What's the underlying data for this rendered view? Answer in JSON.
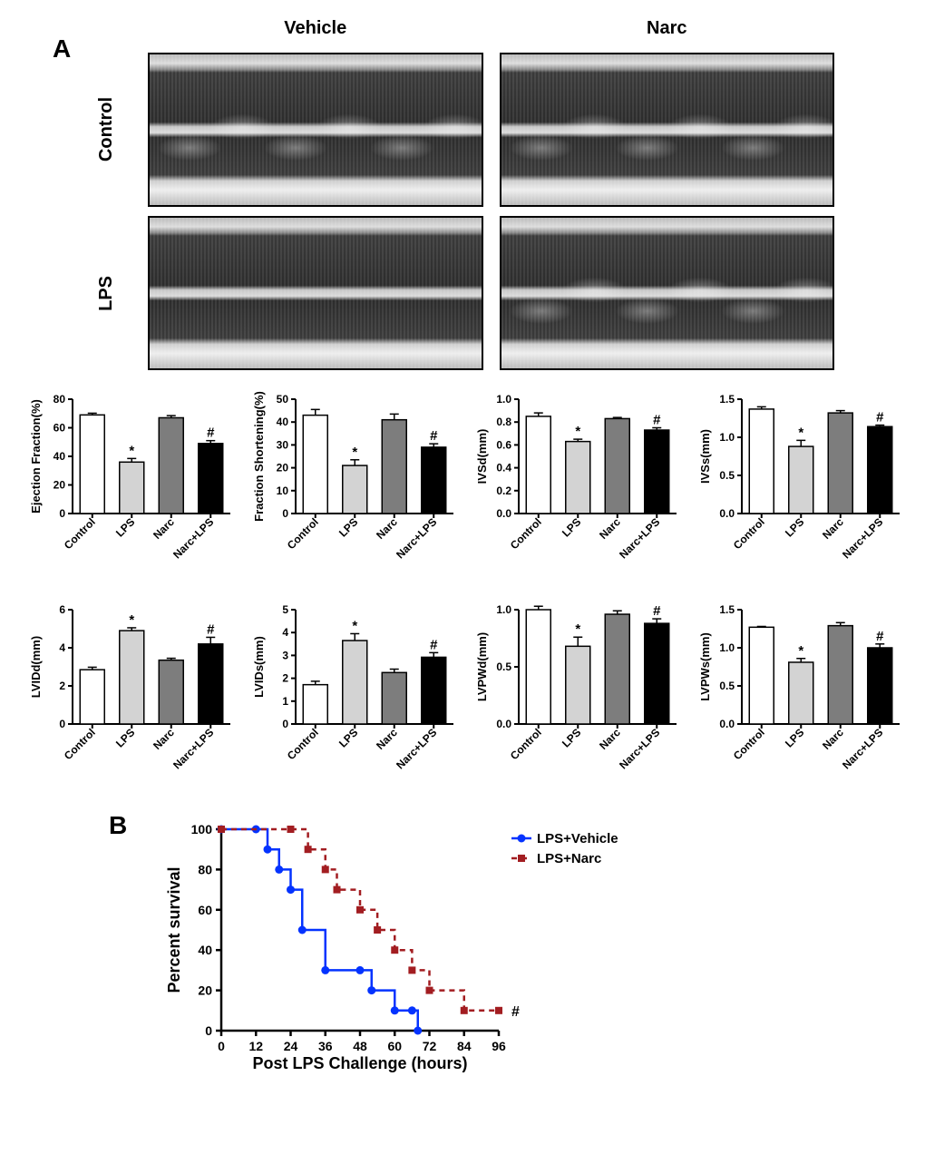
{
  "panelA_label": "A",
  "panelB_label": "B",
  "echo": {
    "col_headers": [
      "Vehicle",
      "Narc"
    ],
    "row_headers": [
      "Control",
      "LPS"
    ]
  },
  "bar_common": {
    "categories": [
      "Control",
      "LPS",
      "Narc",
      "Narc+LPS"
    ],
    "bar_colors": [
      "#ffffff",
      "#d3d3d3",
      "#7d7d7d",
      "#000000"
    ],
    "border_color": "#000000",
    "axis_color": "#000000",
    "label_fontsize": 13,
    "tick_fontsize": 12,
    "error_bar_color": "#000000",
    "significance_marks": [
      "",
      "*",
      "",
      "#"
    ]
  },
  "bar_charts": [
    {
      "ylabel": "Ejection Fraction(%)",
      "ylim": [
        0,
        80
      ],
      "ytick_step": 20,
      "values": [
        69,
        36,
        67,
        49
      ],
      "errors": [
        1.2,
        2.5,
        1.5,
        2.0
      ]
    },
    {
      "ylabel": "Fraction Shortening(%)",
      "ylim": [
        0,
        50
      ],
      "ytick_step": 10,
      "values": [
        43,
        21,
        41,
        29
      ],
      "errors": [
        2.5,
        2.5,
        2.5,
        1.5
      ]
    },
    {
      "ylabel": "IVSd(mm)",
      "ylim": [
        0,
        1.0
      ],
      "ytick_step": 0.2,
      "values": [
        0.85,
        0.63,
        0.83,
        0.73
      ],
      "errors": [
        0.03,
        0.02,
        0.01,
        0.02
      ]
    },
    {
      "ylabel": "IVSs(mm)",
      "ylim": [
        0,
        1.5
      ],
      "ytick_step": 0.5,
      "values": [
        1.37,
        0.88,
        1.32,
        1.14
      ],
      "errors": [
        0.03,
        0.08,
        0.03,
        0.02
      ]
    },
    {
      "ylabel": "LVIDd(mm)",
      "ylim": [
        0,
        6
      ],
      "ytick_step": 2,
      "values": [
        2.85,
        4.9,
        3.35,
        4.2
      ],
      "errors": [
        0.13,
        0.15,
        0.1,
        0.35
      ]
    },
    {
      "ylabel": "LVIDs(mm)",
      "ylim": [
        0,
        5
      ],
      "ytick_step": 1,
      "values": [
        1.72,
        3.65,
        2.25,
        2.92
      ],
      "errors": [
        0.15,
        0.3,
        0.15,
        0.2
      ]
    },
    {
      "ylabel": "LVPWd(mm)",
      "ylim": [
        0,
        1.0
      ],
      "ytick_step": 0.5,
      "values": [
        1.0,
        0.68,
        0.96,
        0.88
      ],
      "errors": [
        0.03,
        0.08,
        0.03,
        0.04
      ]
    },
    {
      "ylabel": "LVPWs(mm)",
      "ylim": [
        0,
        1.5
      ],
      "ytick_step": 0.5,
      "values": [
        1.27,
        0.81,
        1.29,
        1.0
      ],
      "errors": [
        0.01,
        0.05,
        0.04,
        0.05
      ]
    }
  ],
  "survival": {
    "xlabel": "Post LPS Challenge (hours)",
    "ylabel": "Percent survival",
    "xlim": [
      0,
      96
    ],
    "xtick_step": 12,
    "ylim": [
      0,
      100
    ],
    "ytick_step": 20,
    "series": [
      {
        "name": "LPS+Vehicle",
        "color": "#0433ff",
        "dash": "none",
        "marker": "circle",
        "points": [
          [
            0,
            100
          ],
          [
            12,
            100
          ],
          [
            16,
            90
          ],
          [
            20,
            80
          ],
          [
            24,
            70
          ],
          [
            28,
            50
          ],
          [
            36,
            30
          ],
          [
            48,
            30
          ],
          [
            52,
            20
          ],
          [
            60,
            10
          ],
          [
            66,
            10
          ],
          [
            68,
            0
          ]
        ]
      },
      {
        "name": "LPS+Narc",
        "color": "#a21d21",
        "dash": "6,5",
        "marker": "square",
        "points": [
          [
            0,
            100
          ],
          [
            24,
            100
          ],
          [
            30,
            90
          ],
          [
            36,
            80
          ],
          [
            40,
            70
          ],
          [
            48,
            60
          ],
          [
            54,
            50
          ],
          [
            60,
            40
          ],
          [
            66,
            30
          ],
          [
            72,
            20
          ],
          [
            84,
            10
          ],
          [
            96,
            10
          ]
        ]
      }
    ],
    "significance_mark": "#",
    "label_fontsize": 18,
    "tick_fontsize": 14,
    "legend_fontsize": 15
  }
}
